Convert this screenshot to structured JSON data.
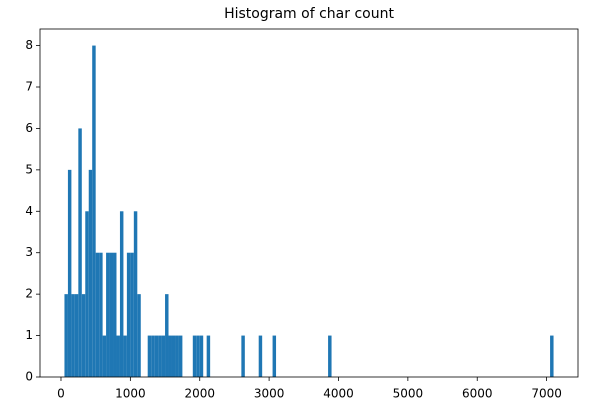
{
  "chart_data": {
    "type": "histogram",
    "title": "Histogram of char count",
    "color": "#1f77b4",
    "bins": [
      50,
      100,
      150,
      200,
      250,
      300,
      350,
      400,
      450,
      500,
      550,
      600,
      650,
      700,
      750,
      800,
      850,
      900,
      950,
      1000,
      1050,
      1100,
      1150,
      1200,
      1250,
      1300,
      1350,
      1400,
      1450,
      1500,
      1550,
      1600,
      1650,
      1700,
      1750,
      1800,
      1850,
      1900,
      1950,
      2000,
      2050,
      2100,
      2150,
      2200,
      2250,
      2300,
      2350,
      2400,
      2450,
      2500,
      2550,
      2600,
      2650,
      2700,
      2750,
      2800,
      2850,
      2900,
      2950,
      3000,
      3050,
      3100,
      3150,
      3200,
      3250,
      3300,
      3350,
      3400,
      3450,
      3500,
      3550,
      3600,
      3650,
      3700,
      3750,
      3800,
      3850,
      3900,
      3950,
      4000,
      4050,
      4100,
      4150,
      4200,
      4250,
      4300,
      4350,
      4400,
      4450,
      4500,
      4550,
      4600,
      4650,
      4700,
      4750,
      4800,
      4850,
      4900,
      4950,
      5000,
      5050,
      5100,
      5150,
      5200,
      5250,
      5300,
      5350,
      5400,
      5450,
      5500,
      5550,
      5600,
      5650,
      5700,
      5750,
      5800,
      5850,
      5900,
      5950,
      6000,
      6050,
      6100,
      6150,
      6200,
      6250,
      6300,
      6350,
      6400,
      6450,
      6500,
      6550,
      6600,
      6650,
      6700,
      6750,
      6800,
      6850,
      6900,
      6950,
      7000,
      7050,
      7100
    ],
    "values": [
      2,
      5,
      2,
      2,
      6,
      2,
      4,
      5,
      8,
      3,
      3,
      1,
      3,
      3,
      3,
      1,
      4,
      1,
      3,
      3,
      4,
      2,
      0,
      0,
      1,
      1,
      1,
      1,
      1,
      2,
      1,
      1,
      1,
      1,
      0,
      0,
      0,
      1,
      1,
      1,
      0,
      1,
      0,
      0,
      0,
      0,
      0,
      0,
      0,
      0,
      0,
      1,
      0,
      0,
      0,
      0,
      1,
      0,
      0,
      0,
      1,
      0,
      0,
      0,
      0,
      0,
      0,
      0,
      0,
      0,
      0,
      0,
      0,
      0,
      0,
      0,
      1,
      0,
      0,
      0,
      0,
      0,
      0,
      0,
      0,
      0,
      0,
      0,
      0,
      0,
      0,
      0,
      0,
      0,
      0,
      0,
      0,
      0,
      0,
      0,
      0,
      0,
      0,
      0,
      0,
      0,
      0,
      0,
      0,
      0,
      0,
      0,
      0,
      0,
      0,
      0,
      0,
      0,
      0,
      0,
      0,
      0,
      0,
      0,
      0,
      0,
      0,
      0,
      0,
      0,
      0,
      0,
      0,
      0,
      0,
      0,
      0,
      0,
      0,
      0,
      1
    ],
    "xlim": [
      -302.5,
      7452.5
    ],
    "xticks": [
      0,
      1000,
      2000,
      3000,
      4000,
      5000,
      6000,
      7000
    ],
    "ylim": [
      0,
      8.4
    ],
    "yticks": [
      0,
      1,
      2,
      3,
      4,
      5,
      6,
      7,
      8
    ]
  }
}
